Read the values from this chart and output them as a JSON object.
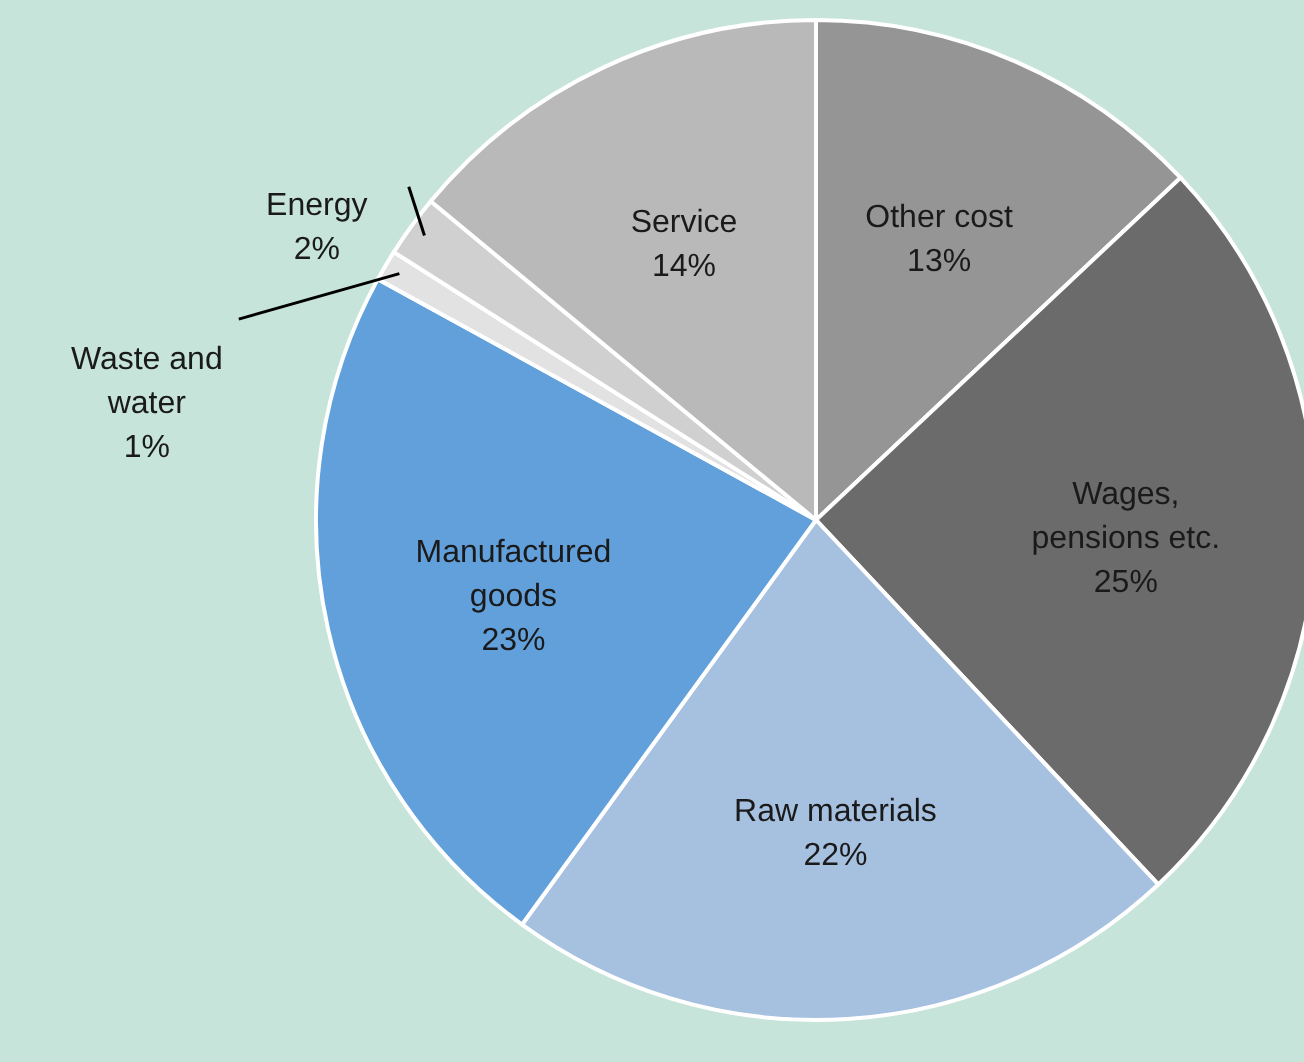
{
  "chart_data": {
    "type": "pie",
    "categories": [
      "Other cost",
      "Wages,\npensions etc.",
      "Raw materials",
      "Manufactured\ngoods",
      "Waste and\nwater",
      "Energy",
      "Service"
    ],
    "values": [
      13,
      25,
      22,
      23,
      1,
      2,
      14
    ],
    "colors": [
      "#959595",
      "#6b6b6b",
      "#a6c0e0",
      "#62a0dc",
      "#e2e2e2",
      "#d0d0d0",
      "#b9b9b9"
    ],
    "value_labels": [
      "13%",
      "25%",
      "22%",
      "23%",
      "1%",
      "2%",
      "14%"
    ]
  }
}
